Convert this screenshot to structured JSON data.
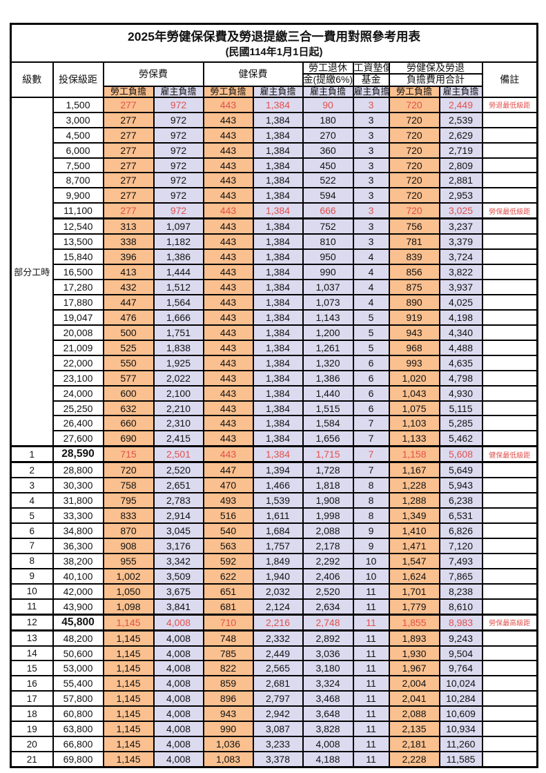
{
  "title": "2025年勞健保保費及勞退提繳三合一費用對照參考用表",
  "subtitle": "(民國114年1月1日起)",
  "header": {
    "level": "級數",
    "bracket": "投保級距",
    "labor_ins": "勞保費",
    "health_ins": "健保費",
    "pension_line1": "勞工退休",
    "pension_line2": "金(提繳6%)",
    "fund_line1": "工資墊償",
    "fund_line2": "基金",
    "total_line1": "勞健保及勞退",
    "total_line2": "負擔費用合計",
    "note": "備註",
    "employee": "勞工負擔",
    "employer": "雇主負擔"
  },
  "part_time_label": "部分工時",
  "colors": {
    "employee_bg": "#fac08f",
    "employer_bg": "#dcdaef",
    "highlight_text": "#e2504c",
    "border": "#000000"
  },
  "rows": [
    {
      "lv": "",
      "br": "1,500",
      "li_e": "277",
      "li_r": "972",
      "hi_e": "443",
      "hi_r": "1,384",
      "pen": "90",
      "fund": "3",
      "tot_e": "720",
      "tot_r": "2,449",
      "note": "勞退最低級距",
      "red": true,
      "big": false
    },
    {
      "lv": "",
      "br": "3,000",
      "li_e": "277",
      "li_r": "972",
      "hi_e": "443",
      "hi_r": "1,384",
      "pen": "180",
      "fund": "3",
      "tot_e": "720",
      "tot_r": "2,539",
      "note": "",
      "red": false,
      "big": false
    },
    {
      "lv": "",
      "br": "4,500",
      "li_e": "277",
      "li_r": "972",
      "hi_e": "443",
      "hi_r": "1,384",
      "pen": "270",
      "fund": "3",
      "tot_e": "720",
      "tot_r": "2,629",
      "note": "",
      "red": false,
      "big": false
    },
    {
      "lv": "",
      "br": "6,000",
      "li_e": "277",
      "li_r": "972",
      "hi_e": "443",
      "hi_r": "1,384",
      "pen": "360",
      "fund": "3",
      "tot_e": "720",
      "tot_r": "2,719",
      "note": "",
      "red": false,
      "big": false
    },
    {
      "lv": "",
      "br": "7,500",
      "li_e": "277",
      "li_r": "972",
      "hi_e": "443",
      "hi_r": "1,384",
      "pen": "450",
      "fund": "3",
      "tot_e": "720",
      "tot_r": "2,809",
      "note": "",
      "red": false,
      "big": false
    },
    {
      "lv": "",
      "br": "8,700",
      "li_e": "277",
      "li_r": "972",
      "hi_e": "443",
      "hi_r": "1,384",
      "pen": "522",
      "fund": "3",
      "tot_e": "720",
      "tot_r": "2,881",
      "note": "",
      "red": false,
      "big": false
    },
    {
      "lv": "",
      "br": "9,900",
      "li_e": "277",
      "li_r": "972",
      "hi_e": "443",
      "hi_r": "1,384",
      "pen": "594",
      "fund": "3",
      "tot_e": "720",
      "tot_r": "2,953",
      "note": "",
      "red": false,
      "big": false
    },
    {
      "lv": "",
      "br": "11,100",
      "li_e": "277",
      "li_r": "972",
      "hi_e": "443",
      "hi_r": "1,384",
      "pen": "666",
      "fund": "3",
      "tot_e": "720",
      "tot_r": "3,025",
      "note": "勞保最低級距",
      "red": true,
      "big": false
    },
    {
      "lv": "",
      "br": "12,540",
      "li_e": "313",
      "li_r": "1,097",
      "hi_e": "443",
      "hi_r": "1,384",
      "pen": "752",
      "fund": "3",
      "tot_e": "756",
      "tot_r": "3,237",
      "note": "",
      "red": false,
      "big": false
    },
    {
      "lv": "",
      "br": "13,500",
      "li_e": "338",
      "li_r": "1,182",
      "hi_e": "443",
      "hi_r": "1,384",
      "pen": "810",
      "fund": "3",
      "tot_e": "781",
      "tot_r": "3,379",
      "note": "",
      "red": false,
      "big": false
    },
    {
      "lv": "",
      "br": "15,840",
      "li_e": "396",
      "li_r": "1,386",
      "hi_e": "443",
      "hi_r": "1,384",
      "pen": "950",
      "fund": "4",
      "tot_e": "839",
      "tot_r": "3,724",
      "note": "",
      "red": false,
      "big": false
    },
    {
      "lv": "",
      "br": "16,500",
      "li_e": "413",
      "li_r": "1,444",
      "hi_e": "443",
      "hi_r": "1,384",
      "pen": "990",
      "fund": "4",
      "tot_e": "856",
      "tot_r": "3,822",
      "note": "",
      "red": false,
      "big": false
    },
    {
      "lv": "",
      "br": "17,280",
      "li_e": "432",
      "li_r": "1,512",
      "hi_e": "443",
      "hi_r": "1,384",
      "pen": "1,037",
      "fund": "4",
      "tot_e": "875",
      "tot_r": "3,937",
      "note": "",
      "red": false,
      "big": false
    },
    {
      "lv": "",
      "br": "17,880",
      "li_e": "447",
      "li_r": "1,564",
      "hi_e": "443",
      "hi_r": "1,384",
      "pen": "1,073",
      "fund": "4",
      "tot_e": "890",
      "tot_r": "4,025",
      "note": "",
      "red": false,
      "big": false
    },
    {
      "lv": "",
      "br": "19,047",
      "li_e": "476",
      "li_r": "1,666",
      "hi_e": "443",
      "hi_r": "1,384",
      "pen": "1,143",
      "fund": "5",
      "tot_e": "919",
      "tot_r": "4,198",
      "note": "",
      "red": false,
      "big": false
    },
    {
      "lv": "",
      "br": "20,008",
      "li_e": "500",
      "li_r": "1,751",
      "hi_e": "443",
      "hi_r": "1,384",
      "pen": "1,200",
      "fund": "5",
      "tot_e": "943",
      "tot_r": "4,340",
      "note": "",
      "red": false,
      "big": false
    },
    {
      "lv": "",
      "br": "21,009",
      "li_e": "525",
      "li_r": "1,838",
      "hi_e": "443",
      "hi_r": "1,384",
      "pen": "1,261",
      "fund": "5",
      "tot_e": "968",
      "tot_r": "4,488",
      "note": "",
      "red": false,
      "big": false
    },
    {
      "lv": "",
      "br": "22,000",
      "li_e": "550",
      "li_r": "1,925",
      "hi_e": "443",
      "hi_r": "1,384",
      "pen": "1,320",
      "fund": "6",
      "tot_e": "993",
      "tot_r": "4,635",
      "note": "",
      "red": false,
      "big": false
    },
    {
      "lv": "",
      "br": "23,100",
      "li_e": "577",
      "li_r": "2,022",
      "hi_e": "443",
      "hi_r": "1,384",
      "pen": "1,386",
      "fund": "6",
      "tot_e": "1,020",
      "tot_r": "4,798",
      "note": "",
      "red": false,
      "big": false
    },
    {
      "lv": "",
      "br": "24,000",
      "li_e": "600",
      "li_r": "2,100",
      "hi_e": "443",
      "hi_r": "1,384",
      "pen": "1,440",
      "fund": "6",
      "tot_e": "1,043",
      "tot_r": "4,930",
      "note": "",
      "red": false,
      "big": false
    },
    {
      "lv": "",
      "br": "25,250",
      "li_e": "632",
      "li_r": "2,210",
      "hi_e": "443",
      "hi_r": "1,384",
      "pen": "1,515",
      "fund": "6",
      "tot_e": "1,075",
      "tot_r": "5,115",
      "note": "",
      "red": false,
      "big": false
    },
    {
      "lv": "",
      "br": "26,400",
      "li_e": "660",
      "li_r": "2,310",
      "hi_e": "443",
      "hi_r": "1,384",
      "pen": "1,584",
      "fund": "7",
      "tot_e": "1,103",
      "tot_r": "5,285",
      "note": "",
      "red": false,
      "big": false
    },
    {
      "lv": "",
      "br": "27,600",
      "li_e": "690",
      "li_r": "2,415",
      "hi_e": "443",
      "hi_r": "1,384",
      "pen": "1,656",
      "fund": "7",
      "tot_e": "1,133",
      "tot_r": "5,462",
      "note": "",
      "red": false,
      "big": false
    },
    {
      "lv": "1",
      "br": "28,590",
      "li_e": "715",
      "li_r": "2,501",
      "hi_e": "443",
      "hi_r": "1,384",
      "pen": "1,715",
      "fund": "7",
      "tot_e": "1,158",
      "tot_r": "5,608",
      "note": "健保最低級距",
      "red": true,
      "big": true
    },
    {
      "lv": "2",
      "br": "28,800",
      "li_e": "720",
      "li_r": "2,520",
      "hi_e": "447",
      "hi_r": "1,394",
      "pen": "1,728",
      "fund": "7",
      "tot_e": "1,167",
      "tot_r": "5,649",
      "note": "",
      "red": false,
      "big": false
    },
    {
      "lv": "3",
      "br": "30,300",
      "li_e": "758",
      "li_r": "2,651",
      "hi_e": "470",
      "hi_r": "1,466",
      "pen": "1,818",
      "fund": "8",
      "tot_e": "1,228",
      "tot_r": "5,943",
      "note": "",
      "red": false,
      "big": false
    },
    {
      "lv": "4",
      "br": "31,800",
      "li_e": "795",
      "li_r": "2,783",
      "hi_e": "493",
      "hi_r": "1,539",
      "pen": "1,908",
      "fund": "8",
      "tot_e": "1,288",
      "tot_r": "6,238",
      "note": "",
      "red": false,
      "big": false
    },
    {
      "lv": "5",
      "br": "33,300",
      "li_e": "833",
      "li_r": "2,914",
      "hi_e": "516",
      "hi_r": "1,611",
      "pen": "1,998",
      "fund": "8",
      "tot_e": "1,349",
      "tot_r": "6,531",
      "note": "",
      "red": false,
      "big": false
    },
    {
      "lv": "6",
      "br": "34,800",
      "li_e": "870",
      "li_r": "3,045",
      "hi_e": "540",
      "hi_r": "1,684",
      "pen": "2,088",
      "fund": "9",
      "tot_e": "1,410",
      "tot_r": "6,826",
      "note": "",
      "red": false,
      "big": false
    },
    {
      "lv": "7",
      "br": "36,300",
      "li_e": "908",
      "li_r": "3,176",
      "hi_e": "563",
      "hi_r": "1,757",
      "pen": "2,178",
      "fund": "9",
      "tot_e": "1,471",
      "tot_r": "7,120",
      "note": "",
      "red": false,
      "big": false
    },
    {
      "lv": "8",
      "br": "38,200",
      "li_e": "955",
      "li_r": "3,342",
      "hi_e": "592",
      "hi_r": "1,849",
      "pen": "2,292",
      "fund": "10",
      "tot_e": "1,547",
      "tot_r": "7,493",
      "note": "",
      "red": false,
      "big": false
    },
    {
      "lv": "9",
      "br": "40,100",
      "li_e": "1,002",
      "li_r": "3,509",
      "hi_e": "622",
      "hi_r": "1,940",
      "pen": "2,406",
      "fund": "10",
      "tot_e": "1,624",
      "tot_r": "7,865",
      "note": "",
      "red": false,
      "big": false
    },
    {
      "lv": "10",
      "br": "42,000",
      "li_e": "1,050",
      "li_r": "3,675",
      "hi_e": "651",
      "hi_r": "2,032",
      "pen": "2,520",
      "fund": "11",
      "tot_e": "1,701",
      "tot_r": "8,238",
      "note": "",
      "red": false,
      "big": false
    },
    {
      "lv": "11",
      "br": "43,900",
      "li_e": "1,098",
      "li_r": "3,841",
      "hi_e": "681",
      "hi_r": "2,124",
      "pen": "2,634",
      "fund": "11",
      "tot_e": "1,779",
      "tot_r": "8,610",
      "note": "",
      "red": false,
      "big": false
    },
    {
      "lv": "12",
      "br": "45,800",
      "li_e": "1,145",
      "li_r": "4,008",
      "hi_e": "710",
      "hi_r": "2,216",
      "pen": "2,748",
      "fund": "11",
      "tot_e": "1,855",
      "tot_r": "8,983",
      "note": "勞保最高級距",
      "red": true,
      "big": true
    },
    {
      "lv": "13",
      "br": "48,200",
      "li_e": "1,145",
      "li_r": "4,008",
      "hi_e": "748",
      "hi_r": "2,332",
      "pen": "2,892",
      "fund": "11",
      "tot_e": "1,893",
      "tot_r": "9,243",
      "note": "",
      "red": false,
      "big": false
    },
    {
      "lv": "14",
      "br": "50,600",
      "li_e": "1,145",
      "li_r": "4,008",
      "hi_e": "785",
      "hi_r": "2,449",
      "pen": "3,036",
      "fund": "11",
      "tot_e": "1,930",
      "tot_r": "9,504",
      "note": "",
      "red": false,
      "big": false
    },
    {
      "lv": "15",
      "br": "53,000",
      "li_e": "1,145",
      "li_r": "4,008",
      "hi_e": "822",
      "hi_r": "2,565",
      "pen": "3,180",
      "fund": "11",
      "tot_e": "1,967",
      "tot_r": "9,764",
      "note": "",
      "red": false,
      "big": false
    },
    {
      "lv": "16",
      "br": "55,400",
      "li_e": "1,145",
      "li_r": "4,008",
      "hi_e": "859",
      "hi_r": "2,681",
      "pen": "3,324",
      "fund": "11",
      "tot_e": "2,004",
      "tot_r": "10,024",
      "note": "",
      "red": false,
      "big": false
    },
    {
      "lv": "17",
      "br": "57,800",
      "li_e": "1,145",
      "li_r": "4,008",
      "hi_e": "896",
      "hi_r": "2,797",
      "pen": "3,468",
      "fund": "11",
      "tot_e": "2,041",
      "tot_r": "10,284",
      "note": "",
      "red": false,
      "big": false
    },
    {
      "lv": "18",
      "br": "60,800",
      "li_e": "1,145",
      "li_r": "4,008",
      "hi_e": "943",
      "hi_r": "2,942",
      "pen": "3,648",
      "fund": "11",
      "tot_e": "2,088",
      "tot_r": "10,609",
      "note": "",
      "red": false,
      "big": false
    },
    {
      "lv": "19",
      "br": "63,800",
      "li_e": "1,145",
      "li_r": "4,008",
      "hi_e": "990",
      "hi_r": "3,087",
      "pen": "3,828",
      "fund": "11",
      "tot_e": "2,135",
      "tot_r": "10,934",
      "note": "",
      "red": false,
      "big": false
    },
    {
      "lv": "20",
      "br": "66,800",
      "li_e": "1,145",
      "li_r": "4,008",
      "hi_e": "1,036",
      "hi_r": "3,233",
      "pen": "4,008",
      "fund": "11",
      "tot_e": "2,181",
      "tot_r": "11,260",
      "note": "",
      "red": false,
      "big": false
    },
    {
      "lv": "21",
      "br": "69,800",
      "li_e": "1,145",
      "li_r": "4,008",
      "hi_e": "1,083",
      "hi_r": "3,378",
      "pen": "4,188",
      "fund": "11",
      "tot_e": "2,228",
      "tot_r": "11,585",
      "note": "",
      "red": false,
      "big": false
    }
  ]
}
